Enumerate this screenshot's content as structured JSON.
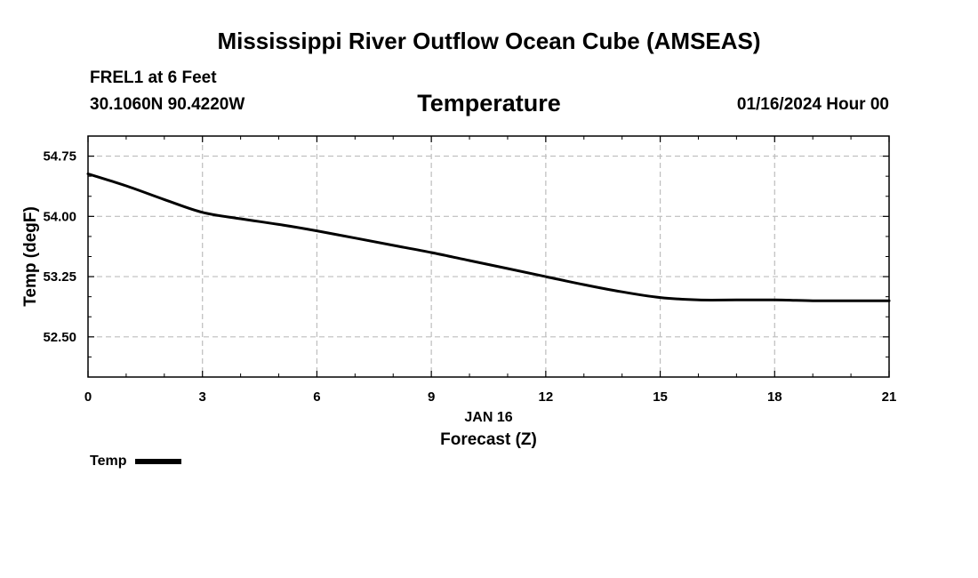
{
  "header": {
    "title": "Mississippi River Outflow Ocean Cube (AMSEAS)",
    "station": "FREL1 at 6 Feet",
    "coordinates": "30.1060N  90.4220W",
    "parameter": "Temperature",
    "datetime": "01/16/2024 Hour 00"
  },
  "footer": {
    "title": "Mississippi River Outflow Ocean Cube (AMSEAS)"
  },
  "chart_data": {
    "type": "line",
    "title": "Temperature",
    "xlabel": "Forecast (Z)",
    "xlabel_date": "JAN 16",
    "ylabel": "Temp (degF)",
    "xlim": [
      0,
      21
    ],
    "ylim": [
      52.0,
      55.0
    ],
    "x_ticks": [
      0,
      3,
      6,
      9,
      12,
      15,
      18,
      21
    ],
    "y_ticks": [
      52.5,
      53.25,
      54.0,
      54.75
    ],
    "y_tick_labels": [
      "52.50",
      "53.25",
      "54.00",
      "54.75"
    ],
    "grid": true,
    "series": [
      {
        "name": "Temp",
        "color": "#000000",
        "x": [
          0,
          1,
          2,
          3,
          4,
          5,
          6,
          7,
          8,
          9,
          10,
          11,
          12,
          13,
          14,
          15,
          16,
          17,
          18,
          19,
          20,
          21
        ],
        "values": [
          54.53,
          54.38,
          54.21,
          54.05,
          53.97,
          53.9,
          53.82,
          53.73,
          53.64,
          53.55,
          53.45,
          53.35,
          53.25,
          53.15,
          53.06,
          52.99,
          52.96,
          52.96,
          52.96,
          52.95,
          52.95,
          52.95
        ]
      }
    ],
    "legend": {
      "label": "Temp",
      "position": "bottom-left"
    }
  }
}
